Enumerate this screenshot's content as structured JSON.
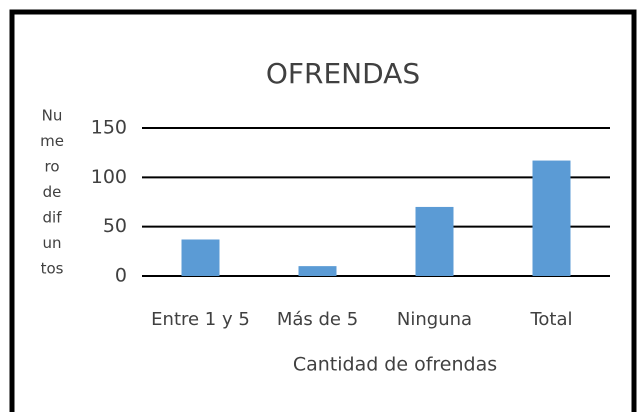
{
  "chart_data": {
    "type": "bar",
    "title": "OFRENDAS",
    "y_label": [
      "Nu",
      "me",
      "ro",
      "de",
      "dif",
      "un",
      "tos"
    ],
    "x_label": "Cantidad de ofrendas",
    "categories": [
      "Entre 1 y 5",
      "Más de 5",
      "Ninguna",
      "Total"
    ],
    "values": [
      37,
      10,
      70,
      117
    ],
    "color": "#5b9bd5",
    "ylim": [
      0,
      150
    ],
    "yticks": [
      0,
      50,
      100,
      150
    ],
    "grid": true
  }
}
